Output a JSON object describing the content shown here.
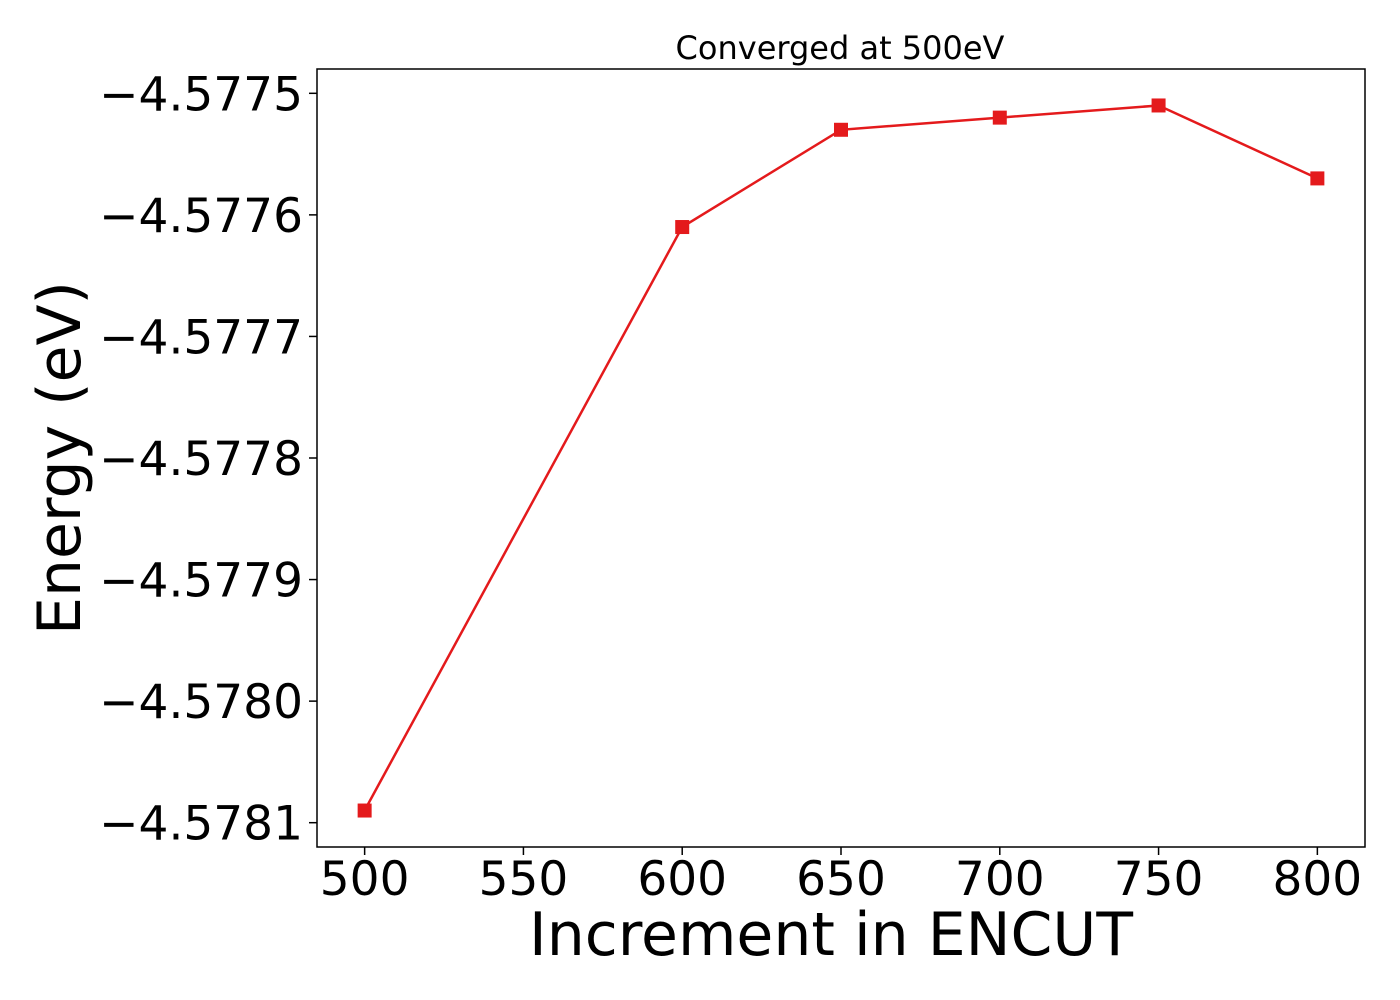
{
  "chart_data": {
    "type": "line",
    "title": "Converged at 500eV",
    "xlabel": "Increment in ENCUT",
    "ylabel": "Energy (eV)",
    "x": [
      500,
      600,
      650,
      700,
      750,
      800
    ],
    "y": [
      -4.57809,
      -4.57761,
      -4.57753,
      -4.57752,
      -4.57751,
      -4.57757
    ],
    "xticks": [
      500,
      550,
      600,
      650,
      700,
      750,
      800
    ],
    "xtick_labels": [
      "500",
      "550",
      "600",
      "650",
      "700",
      "750",
      "800"
    ],
    "yticks": [
      -4.5775,
      -4.5776,
      -4.5777,
      -4.5778,
      -4.5779,
      -4.578,
      -4.5781
    ],
    "ytick_labels": [
      "−4.5775",
      "−4.5776",
      "−4.5777",
      "−4.5778",
      "−4.5779",
      "−4.5780",
      "−4.5781"
    ],
    "xlim": [
      485,
      815
    ],
    "ylim": [
      -4.57812,
      -4.57748
    ],
    "series_color": "#e41a1c",
    "marker": "square",
    "grid": false
  }
}
